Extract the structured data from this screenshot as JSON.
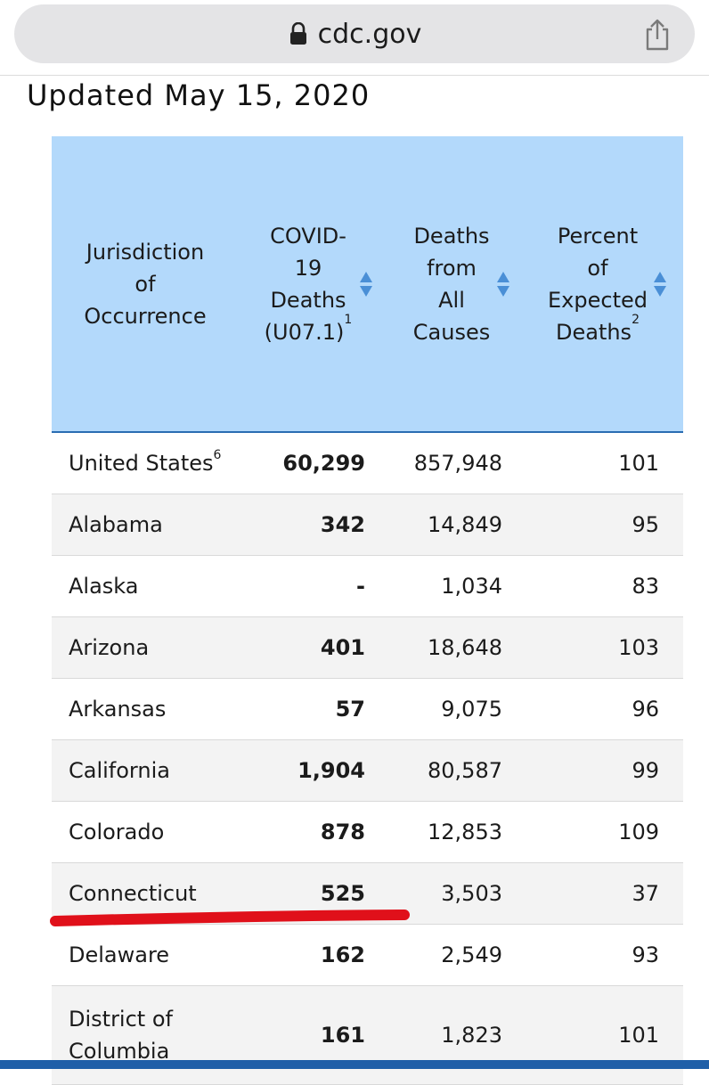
{
  "browser": {
    "url": "cdc.gov",
    "icons": {
      "lock": "lock-icon",
      "share": "share-icon"
    }
  },
  "page": {
    "updated": "Updated May 15, 2020"
  },
  "table": {
    "headers": [
      {
        "lines": [
          "Jurisdiction",
          "of",
          "Occurrence"
        ],
        "sup": ""
      },
      {
        "lines": [
          "COVID-",
          "19",
          "Deaths",
          "(U07.1)"
        ],
        "sup": "1"
      },
      {
        "lines": [
          "Deaths",
          "from",
          "All",
          "Causes"
        ],
        "sup": ""
      },
      {
        "lines": [
          "Percent",
          "of",
          "Expected",
          "Deaths"
        ],
        "sup": "2"
      }
    ],
    "header_bg": "#b3d9fb",
    "sort_icon_color": "#4a8fd6",
    "rows": [
      {
        "name": "United States",
        "sup": "6",
        "covid": "60,299",
        "all": "857,948",
        "pct": "101"
      },
      {
        "name": "Alabama",
        "sup": "",
        "covid": "342",
        "all": "14,849",
        "pct": "95"
      },
      {
        "name": "Alaska",
        "sup": "",
        "covid": "-",
        "all": "1,034",
        "pct": "83"
      },
      {
        "name": "Arizona",
        "sup": "",
        "covid": "401",
        "all": "18,648",
        "pct": "103"
      },
      {
        "name": "Arkansas",
        "sup": "",
        "covid": "57",
        "all": "9,075",
        "pct": "96"
      },
      {
        "name": "California",
        "sup": "",
        "covid": "1,904",
        "all": "80,587",
        "pct": "99"
      },
      {
        "name": "Colorado",
        "sup": "",
        "covid": "878",
        "all": "12,853",
        "pct": "109"
      },
      {
        "name": "Connecticut",
        "sup": "",
        "covid": "525",
        "all": "3,503",
        "pct": "37"
      },
      {
        "name": "Delaware",
        "sup": "",
        "covid": "162",
        "all": "2,549",
        "pct": "93"
      },
      {
        "name": "District of Columbia",
        "sup": "",
        "covid": "161",
        "all": "1,823",
        "pct": "101"
      }
    ]
  },
  "annotation": {
    "color": "#e0101a"
  },
  "accent": "#1f5fa8"
}
